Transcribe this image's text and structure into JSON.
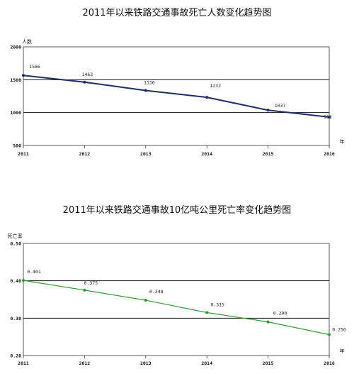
{
  "chart_data": [
    {
      "type": "line",
      "title": "2011年以来铁路交通事故死亡人数变化趋势图",
      "ylabel": "人数",
      "xlabel": "年",
      "categories": [
        "2011",
        "2012",
        "2013",
        "2014",
        "2015",
        "2016"
      ],
      "y_ticks": [
        "500",
        "1000",
        "1500",
        "2000"
      ],
      "ylim": [
        500,
        2000
      ],
      "grid": "horizontal",
      "series": [
        {
          "values": [
            1566,
            1463,
            1336,
            1232,
            1037,
            932
          ],
          "labels": [
            "1566",
            "1463",
            "1336",
            "1232",
            "1037",
            "932"
          ],
          "color": "#1f2e6b"
        }
      ]
    },
    {
      "type": "line",
      "title": "2011年以来铁路交通事故10亿吨公里死亡率变化趋势图",
      "ylabel": "死亡率",
      "xlabel": "年",
      "categories": [
        "2011",
        "2012",
        "2013",
        "2014",
        "2015",
        "2016"
      ],
      "y_ticks": [
        "0.20",
        "0.30",
        "0.40",
        "0.50"
      ],
      "ylim": [
        0.2,
        0.5
      ],
      "grid": "horizontal",
      "series": [
        {
          "values": [
            0.401,
            0.375,
            0.348,
            0.315,
            0.29,
            0.256
          ],
          "labels": [
            "0.401",
            "0.375",
            "0.348",
            "0.315",
            "0.290",
            "0.256"
          ],
          "color": "#2e9a2e"
        }
      ]
    }
  ]
}
